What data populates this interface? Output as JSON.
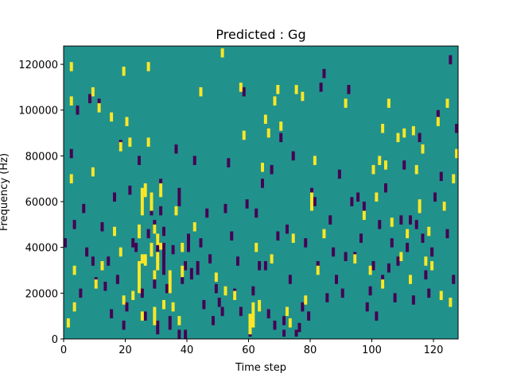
{
  "chart_data": {
    "type": "heatmap",
    "title": "Predicted : Gg",
    "xlabel": "Time step",
    "ylabel": "Frequency (Hz)",
    "xlim": [
      0,
      128
    ],
    "ylim": [
      0,
      128000
    ],
    "x_ticks": [
      0,
      20,
      40,
      60,
      80,
      100,
      120
    ],
    "y_ticks": [
      0,
      20000,
      40000,
      60000,
      80000,
      100000,
      120000
    ],
    "x_tick_labels": [
      "0",
      "20",
      "40",
      "60",
      "80",
      "100",
      "120"
    ],
    "y_tick_labels": [
      "0",
      "20000",
      "40000",
      "60000",
      "80000",
      "100000",
      "120000"
    ],
    "grid": false,
    "legend": "none",
    "colormap": "viridis",
    "values_legend": {
      "low": -1,
      "mid": 0,
      "high": 1
    },
    "colors": {
      "low": "#440154",
      "mid": "#21918c",
      "high": "#fde725"
    },
    "n_time_steps": 128,
    "n_freq_bins": 128,
    "freq_bin_hz": 1000,
    "background_value": 0,
    "high_cells": [
      [
        1,
        5,
        9
      ],
      [
        2,
        68,
        72
      ],
      [
        2,
        102,
        106
      ],
      [
        2,
        117,
        121
      ],
      [
        3,
        12,
        16
      ],
      [
        3,
        28,
        32
      ],
      [
        9,
        71,
        75
      ],
      [
        9,
        106,
        110
      ],
      [
        10,
        22,
        26
      ],
      [
        11,
        99,
        103
      ],
      [
        12,
        30,
        34
      ],
      [
        15,
        95,
        99
      ],
      [
        16,
        45,
        49
      ],
      [
        18,
        36,
        40
      ],
      [
        18,
        82,
        86
      ],
      [
        19,
        15,
        19
      ],
      [
        19,
        115,
        119
      ],
      [
        20,
        93,
        97
      ],
      [
        21,
        84,
        88
      ],
      [
        22,
        17,
        21
      ],
      [
        24,
        20,
        34
      ],
      [
        24,
        44,
        50
      ],
      [
        25,
        8,
        12
      ],
      [
        25,
        33,
        37
      ],
      [
        25,
        54,
        66
      ],
      [
        26,
        62,
        68
      ],
      [
        26,
        32,
        37
      ],
      [
        27,
        84,
        88
      ],
      [
        27,
        117,
        121
      ],
      [
        28,
        36,
        42
      ],
      [
        28,
        56,
        64
      ],
      [
        29,
        6,
        14
      ],
      [
        29,
        26,
        30
      ],
      [
        29,
        46,
        50
      ],
      [
        30,
        30,
        38
      ],
      [
        30,
        41,
        46
      ],
      [
        31,
        62,
        68
      ],
      [
        31,
        39,
        42
      ],
      [
        32,
        13,
        17
      ],
      [
        34,
        20,
        30
      ],
      [
        35,
        12,
        16
      ],
      [
        36,
        54,
        58
      ],
      [
        37,
        6,
        10
      ],
      [
        38,
        27,
        32
      ],
      [
        38,
        38,
        42
      ],
      [
        42,
        47,
        51
      ],
      [
        44,
        106,
        110
      ],
      [
        49,
        25,
        29
      ],
      [
        51,
        123,
        127
      ],
      [
        52,
        19,
        23
      ],
      [
        55,
        17,
        21
      ],
      [
        57,
        108,
        112
      ],
      [
        58,
        87,
        91
      ],
      [
        60,
        2,
        11
      ],
      [
        61,
        5,
        16
      ],
      [
        62,
        38,
        42
      ],
      [
        63,
        12,
        17
      ],
      [
        64,
        73,
        77
      ],
      [
        65,
        94,
        98
      ],
      [
        66,
        88,
        92
      ],
      [
        67,
        33,
        37
      ],
      [
        68,
        102,
        106
      ],
      [
        69,
        107,
        111
      ],
      [
        70,
        91,
        95
      ],
      [
        72,
        10,
        14
      ],
      [
        73,
        5,
        9
      ],
      [
        74,
        42,
        46
      ],
      [
        75,
        107,
        111
      ],
      [
        77,
        104,
        108
      ],
      [
        78,
        15,
        19
      ],
      [
        80,
        56,
        64
      ],
      [
        81,
        76,
        80
      ],
      [
        82,
        28,
        32
      ],
      [
        84,
        44,
        48
      ],
      [
        91,
        101,
        105
      ],
      [
        94,
        33,
        37
      ],
      [
        97,
        52,
        56
      ],
      [
        99,
        28,
        32
      ],
      [
        100,
        72,
        76
      ],
      [
        101,
        60,
        64
      ],
      [
        102,
        76,
        80
      ],
      [
        103,
        90,
        94
      ],
      [
        103,
        22,
        26
      ],
      [
        104,
        74,
        78
      ],
      [
        105,
        101,
        105
      ],
      [
        106,
        49,
        53
      ],
      [
        108,
        86,
        90
      ],
      [
        109,
        34,
        38
      ],
      [
        110,
        88,
        92
      ],
      [
        111,
        44,
        48
      ],
      [
        112,
        24,
        28
      ],
      [
        113,
        89,
        93
      ],
      [
        114,
        72,
        76
      ],
      [
        115,
        55,
        61
      ],
      [
        116,
        81,
        85
      ],
      [
        117,
        32,
        36
      ],
      [
        118,
        45,
        49
      ],
      [
        119,
        30,
        34
      ],
      [
        121,
        93,
        97
      ],
      [
        122,
        17,
        21
      ],
      [
        123,
        56,
        60
      ],
      [
        124,
        101,
        105
      ],
      [
        125,
        14,
        18
      ],
      [
        126,
        68,
        72
      ],
      [
        127,
        79,
        83
      ]
    ],
    "low_cells": [
      [
        0,
        40,
        44
      ],
      [
        2,
        79,
        83
      ],
      [
        3,
        48,
        52
      ],
      [
        4,
        98,
        102
      ],
      [
        5,
        18,
        22
      ],
      [
        6,
        55,
        59
      ],
      [
        7,
        36,
        40
      ],
      [
        8,
        103,
        107
      ],
      [
        9,
        32,
        36
      ],
      [
        10,
        23,
        27
      ],
      [
        11,
        101,
        105
      ],
      [
        12,
        47,
        51
      ],
      [
        13,
        21,
        25
      ],
      [
        14,
        32,
        36
      ],
      [
        15,
        9,
        13
      ],
      [
        16,
        60,
        64
      ],
      [
        17,
        24,
        28
      ],
      [
        18,
        83,
        87
      ],
      [
        19,
        4,
        8
      ],
      [
        20,
        12,
        16
      ],
      [
        21,
        63,
        67
      ],
      [
        22,
        40,
        44
      ],
      [
        23,
        38,
        42
      ],
      [
        24,
        76,
        80
      ],
      [
        25,
        18,
        22
      ],
      [
        26,
        8,
        12
      ],
      [
        27,
        44,
        48
      ],
      [
        28,
        54,
        58
      ],
      [
        29,
        22,
        30
      ],
      [
        29,
        48,
        52
      ],
      [
        30,
        2,
        8
      ],
      [
        30,
        36,
        44
      ],
      [
        31,
        66,
        70
      ],
      [
        31,
        54,
        58
      ],
      [
        32,
        28,
        42
      ],
      [
        32,
        45,
        49
      ],
      [
        33,
        20,
        24
      ],
      [
        34,
        4,
        10
      ],
      [
        35,
        37,
        41
      ],
      [
        36,
        81,
        85
      ],
      [
        37,
        0,
        4
      ],
      [
        37,
        58,
        66
      ],
      [
        38,
        24,
        28
      ],
      [
        39,
        30,
        34
      ],
      [
        39,
        0,
        4
      ],
      [
        40,
        38,
        46
      ],
      [
        41,
        26,
        31
      ],
      [
        42,
        76,
        80
      ],
      [
        43,
        28,
        34
      ],
      [
        44,
        40,
        44
      ],
      [
        45,
        13,
        17
      ],
      [
        46,
        53,
        57
      ],
      [
        47,
        33,
        37
      ],
      [
        48,
        6,
        10
      ],
      [
        49,
        20,
        24
      ],
      [
        50,
        14,
        18
      ],
      [
        51,
        10,
        14
      ],
      [
        52,
        55,
        59
      ],
      [
        53,
        75,
        79
      ],
      [
        54,
        43,
        47
      ],
      [
        55,
        18,
        22
      ],
      [
        56,
        32,
        36
      ],
      [
        57,
        10,
        14
      ],
      [
        58,
        106,
        110
      ],
      [
        59,
        57,
        61
      ],
      [
        60,
        1,
        4
      ],
      [
        61,
        19,
        23
      ],
      [
        62,
        53,
        57
      ],
      [
        63,
        30,
        34
      ],
      [
        64,
        66,
        70
      ],
      [
        65,
        30,
        34
      ],
      [
        66,
        9,
        13
      ],
      [
        67,
        72,
        76
      ],
      [
        68,
        4,
        8
      ],
      [
        69,
        43,
        47
      ],
      [
        70,
        86,
        90
      ],
      [
        71,
        1,
        4
      ],
      [
        71,
        6,
        10
      ],
      [
        72,
        46,
        50
      ],
      [
        73,
        24,
        28
      ],
      [
        74,
        78,
        82
      ],
      [
        75,
        1,
        4
      ],
      [
        76,
        3,
        7
      ],
      [
        77,
        12,
        16
      ],
      [
        78,
        40,
        44
      ],
      [
        79,
        8,
        12
      ],
      [
        80,
        62,
        66
      ],
      [
        81,
        58,
        62
      ],
      [
        82,
        30,
        34
      ],
      [
        83,
        108,
        112
      ],
      [
        84,
        114,
        118
      ],
      [
        85,
        16,
        20
      ],
      [
        86,
        50,
        54
      ],
      [
        87,
        36,
        40
      ],
      [
        88,
        24,
        28
      ],
      [
        89,
        70,
        74
      ],
      [
        90,
        18,
        22
      ],
      [
        91,
        34,
        38
      ],
      [
        92,
        107,
        111
      ],
      [
        93,
        58,
        62
      ],
      [
        94,
        34,
        38
      ],
      [
        95,
        60,
        64
      ],
      [
        96,
        42,
        46
      ],
      [
        97,
        56,
        60
      ],
      [
        98,
        12,
        16
      ],
      [
        99,
        19,
        23
      ],
      [
        100,
        30,
        34
      ],
      [
        101,
        8,
        12
      ],
      [
        102,
        48,
        52
      ],
      [
        103,
        24,
        28
      ],
      [
        104,
        64,
        68
      ],
      [
        105,
        29,
        33
      ],
      [
        106,
        40,
        44
      ],
      [
        107,
        16,
        20
      ],
      [
        108,
        32,
        36
      ],
      [
        109,
        50,
        54
      ],
      [
        110,
        74,
        78
      ],
      [
        111,
        38,
        42
      ],
      [
        112,
        50,
        54
      ],
      [
        113,
        15,
        19
      ],
      [
        114,
        48,
        52
      ],
      [
        115,
        86,
        90
      ],
      [
        116,
        42,
        46
      ],
      [
        117,
        26,
        30
      ],
      [
        118,
        18,
        22
      ],
      [
        119,
        36,
        40
      ],
      [
        120,
        60,
        64
      ],
      [
        121,
        96,
        100
      ],
      [
        122,
        69,
        73
      ],
      [
        123,
        56,
        60
      ],
      [
        124,
        44,
        48
      ],
      [
        125,
        120,
        124
      ],
      [
        126,
        24,
        28
      ],
      [
        127,
        90,
        94
      ]
    ]
  }
}
